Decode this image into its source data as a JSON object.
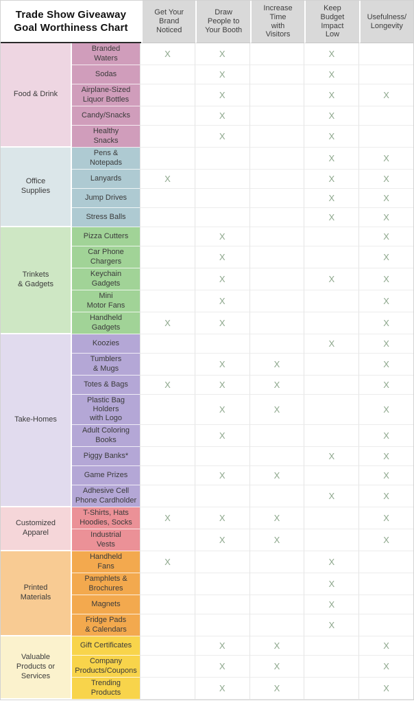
{
  "title": "Trade Show Giveaway\nGoal Worthiness Chart",
  "x_mark": "X",
  "colors": {
    "header_bg": "#d9d9d9",
    "x_mark": "#8da78c",
    "grid_line": "#e4e4e4",
    "title_text": "#111111",
    "body_text": "#3a3a3a"
  },
  "columns": [
    {
      "label": "Get Your\nBrand\nNoticed"
    },
    {
      "label": "Draw\nPeople to\nYour Booth"
    },
    {
      "label": "Increase\nTime\nwith\nVisitors"
    },
    {
      "label": "Keep\nBudget\nImpact\nLow"
    },
    {
      "label": "Usefulness/\nLongevity"
    }
  ],
  "chart_data": {
    "type": "table",
    "title": "Trade Show Giveaway Goal Worthiness Chart",
    "goal_columns": [
      "Get Your Brand Noticed",
      "Draw People to Your Booth",
      "Increase Time with Visitors",
      "Keep Budget Impact Low",
      "Usefulness/Longevity"
    ],
    "legend_position": "none",
    "note": "marks arrays align with goal_columns; true = X shown"
  },
  "sections": [
    {
      "name": "Food & Drink",
      "cat_bg": "#eed6e2",
      "item_bg": "#d09dbb",
      "items": [
        {
          "label": "Branded\nWaters",
          "marks": [
            true,
            true,
            false,
            true,
            false
          ]
        },
        {
          "label": "Sodas",
          "marks": [
            false,
            true,
            false,
            true,
            false
          ]
        },
        {
          "label": "Airplane-Sized\nLiquor Bottles",
          "marks": [
            false,
            true,
            false,
            true,
            true
          ]
        },
        {
          "label": "Candy/Snacks",
          "marks": [
            false,
            true,
            false,
            true,
            false
          ]
        },
        {
          "label": "Healthy\nSnacks",
          "marks": [
            false,
            true,
            false,
            true,
            false
          ]
        }
      ]
    },
    {
      "name": "Office\nSupplies",
      "cat_bg": "#dbe6e9",
      "item_bg": "#aecad2",
      "items": [
        {
          "label": "Pens &\nNotepads",
          "marks": [
            false,
            false,
            false,
            true,
            true
          ]
        },
        {
          "label": "Lanyards",
          "marks": [
            true,
            false,
            false,
            true,
            true
          ]
        },
        {
          "label": "Jump Drives",
          "marks": [
            false,
            false,
            false,
            true,
            true
          ]
        },
        {
          "label": "Stress Balls",
          "marks": [
            false,
            false,
            false,
            true,
            true
          ]
        }
      ]
    },
    {
      "name": "Trinkets\n& Gadgets",
      "cat_bg": "#cee7c4",
      "item_bg": "#a1d397",
      "items": [
        {
          "label": "Pizza Cutters",
          "marks": [
            false,
            true,
            false,
            false,
            true
          ]
        },
        {
          "label": "Car Phone\nChargers",
          "marks": [
            false,
            true,
            false,
            false,
            true
          ]
        },
        {
          "label": "Keychain\nGadgets",
          "marks": [
            false,
            true,
            false,
            true,
            true
          ]
        },
        {
          "label": "Mini\nMotor Fans",
          "marks": [
            false,
            true,
            false,
            false,
            true
          ]
        },
        {
          "label": "Handheld\nGadgets",
          "marks": [
            true,
            true,
            false,
            false,
            true
          ]
        }
      ]
    },
    {
      "name": "Take-Homes",
      "cat_bg": "#e1dbee",
      "item_bg": "#b4a7d6",
      "items": [
        {
          "label": "Koozies",
          "marks": [
            false,
            false,
            false,
            true,
            true
          ]
        },
        {
          "label": "Tumblers\n& Mugs",
          "marks": [
            false,
            true,
            true,
            false,
            true
          ]
        },
        {
          "label": "Totes & Bags",
          "marks": [
            true,
            true,
            true,
            false,
            true
          ]
        },
        {
          "label": "Plastic Bag\nHolders\nwith Logo",
          "marks": [
            false,
            true,
            true,
            false,
            true
          ]
        },
        {
          "label": "Adult Coloring\nBooks",
          "marks": [
            false,
            true,
            false,
            false,
            true
          ]
        },
        {
          "label": "Piggy Banks*",
          "marks": [
            false,
            false,
            false,
            true,
            true
          ]
        },
        {
          "label": "Game Prizes",
          "marks": [
            false,
            true,
            true,
            false,
            true
          ]
        },
        {
          "label": "Adhesive Cell\nPhone Cardholder",
          "marks": [
            false,
            false,
            false,
            true,
            true
          ]
        }
      ]
    },
    {
      "name": "Customized\nApparel",
      "cat_bg": "#f5d6d9",
      "item_bg": "#eb9197",
      "items": [
        {
          "label": "T-Shirts, Hats\nHoodies, Socks",
          "marks": [
            true,
            true,
            true,
            false,
            true
          ]
        },
        {
          "label": "Industrial\nVests",
          "marks": [
            false,
            true,
            true,
            false,
            true
          ]
        }
      ]
    },
    {
      "name": "Printed\nMaterials",
      "cat_bg": "#f8cb93",
      "item_bg": "#f3a94e",
      "items": [
        {
          "label": "Handheld\nFans",
          "marks": [
            true,
            false,
            false,
            true,
            false
          ]
        },
        {
          "label": "Pamphlets &\nBrochures",
          "marks": [
            false,
            false,
            false,
            true,
            false
          ]
        },
        {
          "label": "Magnets",
          "marks": [
            false,
            false,
            false,
            true,
            false
          ]
        },
        {
          "label": "Fridge Pads\n& Calendars",
          "marks": [
            false,
            false,
            false,
            true,
            false
          ]
        }
      ]
    },
    {
      "name": "Valuable\nProducts or\nServices",
      "cat_bg": "#fbf2cd",
      "item_bg": "#f8d44b",
      "items": [
        {
          "label": "Gift Certificates",
          "marks": [
            false,
            true,
            true,
            false,
            true
          ]
        },
        {
          "label": "Company\nProducts/Coupons",
          "marks": [
            false,
            true,
            true,
            false,
            true
          ]
        },
        {
          "label": "Trending\nProducts",
          "marks": [
            false,
            true,
            true,
            false,
            true
          ]
        }
      ]
    }
  ]
}
